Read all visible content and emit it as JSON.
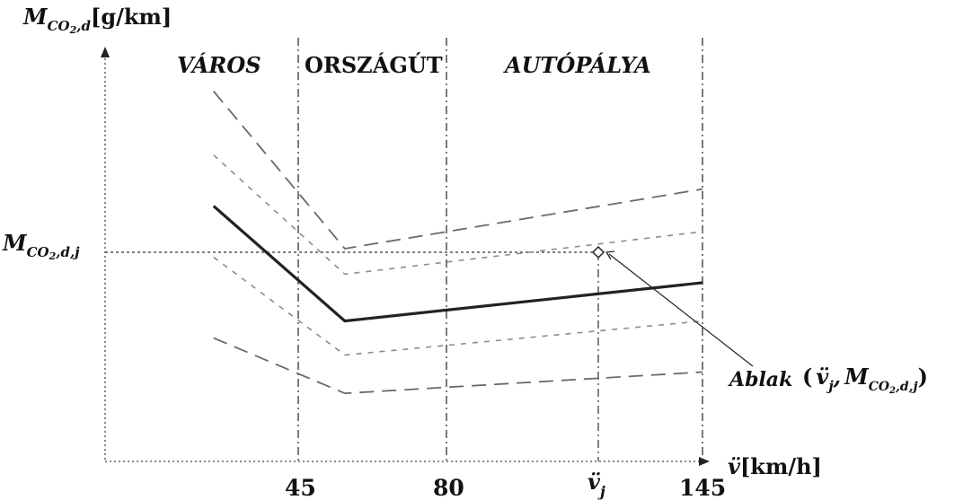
{
  "y_axis": {
    "label_main": "M",
    "label_sub": "CO",
    "label_sub2": "2",
    "label_sub3": ",d",
    "label_unit": "[g/km]"
  },
  "x_axis": {
    "label_main": "v̈",
    "label_unit": "[km/h]",
    "ticks": [
      "45",
      "80",
      "v̈",
      "145"
    ],
    "tick_sub": "j"
  },
  "zones": [
    "VÁROS",
    "ORSZÁGÚT",
    "AUTÓPÁLYA"
  ],
  "y_marker": {
    "main": "M",
    "sub": "CO",
    "sub2": "2",
    "sub3": ",d,j"
  },
  "annotation": {
    "label": "Ablak",
    "tuple_open": "(",
    "tuple_v": "v̈",
    "tuple_v_sub": "j",
    "tuple_sep": ",",
    "tuple_m": "M",
    "tuple_m_sub": "CO",
    "tuple_m_sub2": "2",
    "tuple_m_sub3": ",d,j",
    "tuple_close": ")"
  },
  "chart_data": {
    "type": "line",
    "x_reference_values": [
      45,
      80,
      145
    ],
    "series": [
      {
        "style": "solid-bold",
        "x": [
          25,
          56,
          145
        ],
        "y": [
          0.6,
          0.33,
          0.42
        ]
      },
      {
        "style": "dashed",
        "x": [
          25,
          56,
          145
        ],
        "y": [
          0.87,
          0.5,
          0.64
        ]
      },
      {
        "style": "dotted",
        "x": [
          25,
          56,
          145
        ],
        "y": [
          0.72,
          0.44,
          0.54
        ]
      },
      {
        "style": "dotted",
        "x": [
          25,
          56,
          145
        ],
        "y": [
          0.48,
          0.25,
          0.33
        ]
      },
      {
        "style": "dashed",
        "x": [
          25,
          56,
          145
        ],
        "y": [
          0.29,
          0.16,
          0.21
        ]
      }
    ]
  },
  "colors": {
    "bold_line": "#222222",
    "dashed_line": "#6a6a6a",
    "dotted_line": "#8c8c8c",
    "axis": "#333333"
  }
}
